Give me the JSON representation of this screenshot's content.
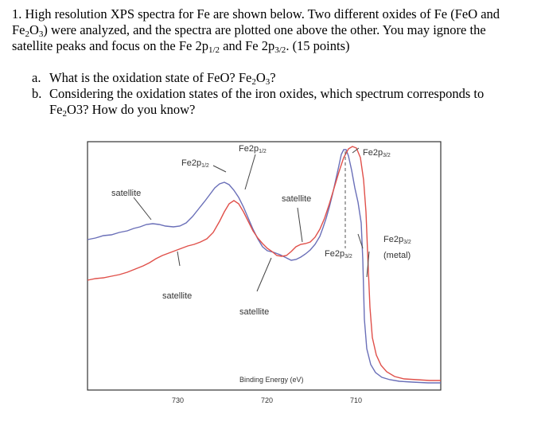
{
  "question": {
    "number": "1.",
    "line1": "High resolution XPS spectra for Fe are shown below. Two different oxides of Fe (FeO and",
    "line2_a": "Fe",
    "line2_sub1": "2",
    "line2_b": "O",
    "line2_sub2": "3",
    "line2_c": ") were analyzed, and the spectra are plotted one above the other. You may ignore the",
    "line3_a": "satellite peaks and focus on the Fe 2p",
    "line3_sub1": "1/2",
    "line3_b": " and Fe 2p",
    "line3_sub2": "3/2",
    "line3_c": ". (15 points)"
  },
  "subquestions": [
    {
      "label": "a.",
      "text_a": "What is the oxidation state of FeO? Fe",
      "sub1": "2",
      "text_b": "O",
      "sub2": "3",
      "text_c": "?"
    },
    {
      "label": "b.",
      "text_a": "Considering the oxidation states of the iron oxides, which spectrum corresponds to",
      "text_b": "Fe",
      "sub1": "2",
      "text_c": "O3? How do you know?"
    }
  ],
  "figure": {
    "labels": {
      "fe2p12_top": "Fe2p",
      "fe2p12_top_sub": "1/2",
      "fe2p12_left": "Fe2p",
      "fe2p12_left_sub": "1/2",
      "fe2p32_top": "Fe2p",
      "fe2p32_top_sub": "3/2",
      "fe2p32_mid": "Fe2p",
      "fe2p32_mid_sub": "3/2",
      "fe2p32_metal": "Fe2p",
      "fe2p32_metal_sub": "3/2",
      "metal": "(metal)",
      "satellite_left": "satellite",
      "satellite_right": "satellite",
      "satellite_low_left": "satellite",
      "satellite_low_mid": "satellite"
    },
    "x_axis_label": "Binding Energy (eV)",
    "x_ticks": [
      "730",
      "720",
      "710"
    ],
    "colors": {
      "blue_series": "#6a6fb8",
      "red_series": "#e0504a",
      "frame": "#333333"
    }
  }
}
